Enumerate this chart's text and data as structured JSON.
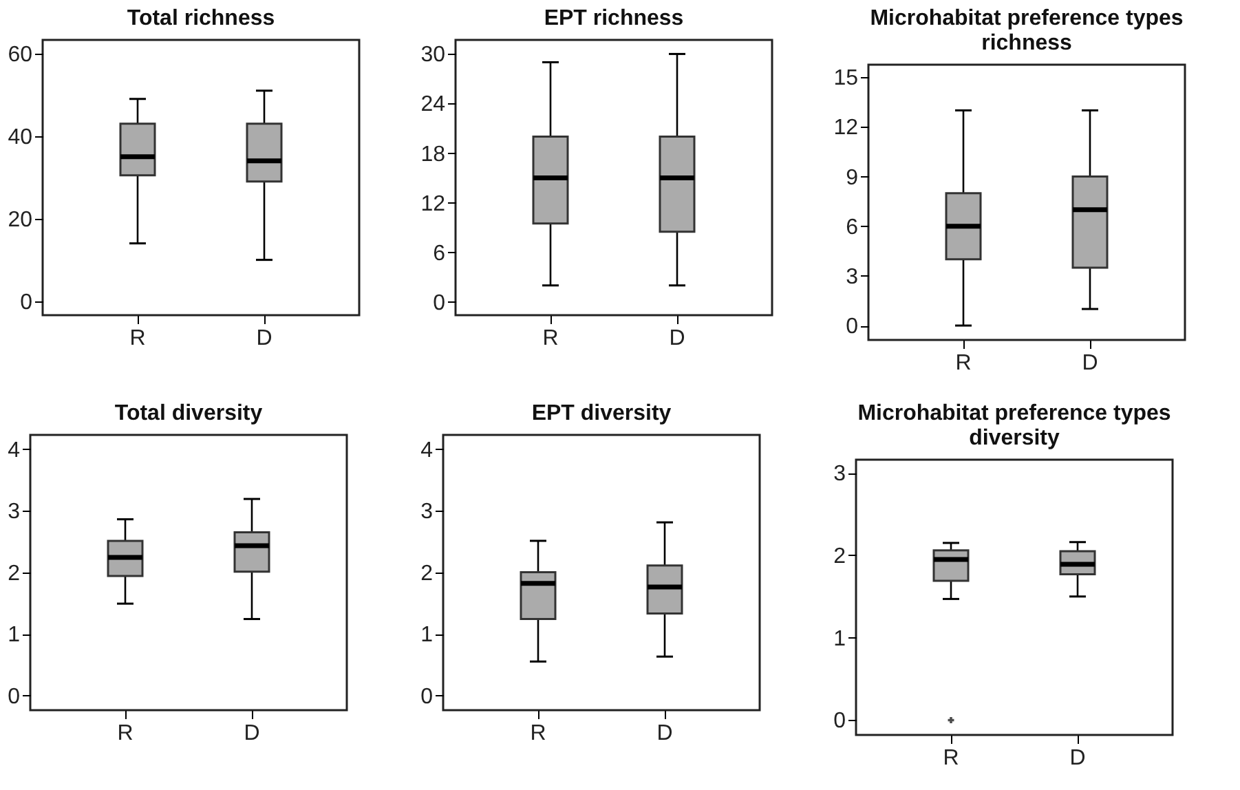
{
  "chart_data": [
    {
      "type": "box",
      "title": "Total richness",
      "categories": [
        "R",
        "D"
      ],
      "ylim": [
        -3.4,
        63.3
      ],
      "yticks": [
        0,
        20,
        40,
        60
      ],
      "color": "#ababab",
      "boxes": [
        {
          "low": 14,
          "q1": 30.5,
          "median": 35,
          "q3": 43,
          "high": 49
        },
        {
          "low": 10,
          "q1": 29,
          "median": 34,
          "q3": 43,
          "high": 51
        }
      ]
    },
    {
      "type": "box",
      "title": "EPT richness",
      "categories": [
        "R",
        "D"
      ],
      "ylim": [
        -1.6,
        31.7
      ],
      "yticks": [
        0,
        6,
        12,
        18,
        24,
        30
      ],
      "color": "#ababab",
      "boxes": [
        {
          "low": 2,
          "q1": 9.5,
          "median": 15,
          "q3": 20,
          "high": 29
        },
        {
          "low": 2,
          "q1": 8.5,
          "median": 15,
          "q3": 20,
          "high": 30
        }
      ]
    },
    {
      "type": "box",
      "title": "Microhabitat preference types richness",
      "categories": [
        "R",
        "D"
      ],
      "ylim": [
        -0.87,
        15.76
      ],
      "yticks": [
        0,
        3,
        6,
        9,
        12,
        15
      ],
      "color": "#ababab",
      "boxes": [
        {
          "low": 0,
          "q1": 4,
          "median": 6,
          "q3": 8,
          "high": 13
        },
        {
          "low": 1,
          "q1": 3.5,
          "median": 7,
          "q3": 9,
          "high": 13
        }
      ]
    },
    {
      "type": "box",
      "title": "Total diversity",
      "categories": [
        "R",
        "D"
      ],
      "ylim": [
        -0.24,
        4.23
      ],
      "yticks": [
        0,
        1,
        2,
        3,
        4
      ],
      "color": "#ababab",
      "boxes": [
        {
          "low": 1.49,
          "q1": 1.94,
          "median": 2.24,
          "q3": 2.51,
          "high": 2.86
        },
        {
          "low": 1.24,
          "q1": 2.01,
          "median": 2.43,
          "q3": 2.65,
          "high": 3.19
        }
      ]
    },
    {
      "type": "box",
      "title": "EPT diversity",
      "categories": [
        "R",
        "D"
      ],
      "ylim": [
        -0.24,
        4.23
      ],
      "yticks": [
        0,
        1,
        2,
        3,
        4
      ],
      "color": "#ababab",
      "boxes": [
        {
          "low": 0.55,
          "q1": 1.24,
          "median": 1.82,
          "q3": 2.0,
          "high": 2.51
        },
        {
          "low": 0.63,
          "q1": 1.33,
          "median": 1.76,
          "q3": 2.11,
          "high": 2.81
        }
      ]
    },
    {
      "type": "box",
      "title": "Microhabitat preference types diversity",
      "categories": [
        "R",
        "D"
      ],
      "ylim": [
        -0.18,
        3.16
      ],
      "yticks": [
        0,
        1,
        2,
        3
      ],
      "color": "#ababab",
      "marker": "cross",
      "boxes": [
        {
          "low": 1.47,
          "q1": 1.69,
          "median": 1.95,
          "q3": 2.06,
          "high": 2.15,
          "outliers": [
            0
          ]
        },
        {
          "low": 1.5,
          "q1": 1.77,
          "median": 1.89,
          "q3": 2.05,
          "high": 2.16
        }
      ]
    }
  ]
}
